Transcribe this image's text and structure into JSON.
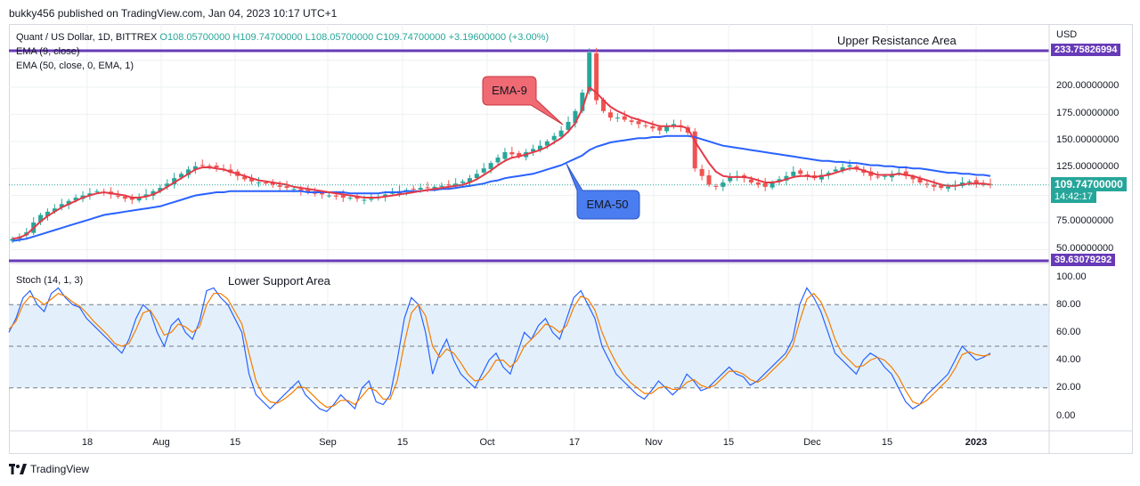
{
  "header": {
    "published": "bukky456 published on TradingView.com, Jan 04, 2023 10:17 UTC+1"
  },
  "legend": {
    "symbol": "Quant / US Dollar, 1D, BITTREX",
    "ohlc": "O108.05700000  H109.74700000  L108.05700000  C109.74700000  +3.19600000 (+3.00%)",
    "ema9": "EMA (9, close)",
    "ema50": "EMA (50, close, 0, EMA, 1)",
    "stoch": "Stoch (14, 1, 3)"
  },
  "annotations": {
    "upper": "Upper Resistance Area",
    "lower": "Lower Support Area",
    "ema9_callout": "EMA-9",
    "ema50_callout": "EMA-50"
  },
  "price_axis": {
    "currency": "USD",
    "ticks": [
      "200.00000000",
      "175.00000000",
      "150.00000000",
      "125.00000000",
      "75.00000000",
      "50.00000000"
    ],
    "resistance_label": "233.75826994",
    "support_label": "39.63079292",
    "last_price": "109.74700000",
    "countdown": "14:42:17"
  },
  "stoch_axis": {
    "ticks": [
      "100.00",
      "80.00",
      "60.00",
      "40.00",
      "20.00",
      "0.00"
    ]
  },
  "time_axis": {
    "ticks": [
      "18",
      "Aug",
      "15",
      "Sep",
      "15",
      "Oct",
      "17",
      "Nov",
      "15",
      "Dec",
      "15",
      "2023"
    ]
  },
  "footer": {
    "brand": "TradingView"
  },
  "colors": {
    "up": "#26a69a",
    "down": "#ef5350",
    "ema9": "#e53947",
    "ema50": "#2962ff",
    "level": "#673ab7",
    "stochK": "#2962ff",
    "stochD": "#f57c00",
    "band": "#e3f0fb"
  },
  "chart_data": [
    {
      "type": "candlestick",
      "title": "Quant / US Dollar, 1D, BITTREX",
      "ylim": [
        39.63,
        233.76
      ],
      "levels": {
        "resistance": 233.75826994,
        "support": 39.63079292
      },
      "last": 109.747,
      "close_path": [
        60,
        62,
        66,
        75,
        82,
        85,
        88,
        92,
        95,
        98,
        100,
        102,
        104,
        103,
        101,
        99,
        97,
        96,
        98,
        101,
        104,
        107,
        111,
        116,
        120,
        124,
        127,
        128,
        127,
        126,
        124,
        121,
        118,
        115,
        113,
        112,
        111,
        110,
        108,
        107,
        106,
        104,
        103,
        102,
        101,
        100,
        99,
        98,
        98,
        97,
        96,
        97,
        99,
        101,
        103,
        104,
        105,
        106,
        107,
        107,
        108,
        109,
        110,
        111,
        113,
        116,
        120,
        125,
        130,
        135,
        140,
        138,
        136,
        140,
        143,
        146,
        150,
        155,
        160,
        168,
        178,
        195,
        232,
        188,
        178,
        172,
        172,
        170,
        168,
        166,
        164,
        162,
        160,
        164,
        166,
        163,
        158,
        125,
        118,
        110,
        108,
        112,
        117,
        118,
        116,
        112,
        110,
        108,
        112,
        115,
        118,
        122,
        120,
        118,
        116,
        119,
        121,
        124,
        126,
        128,
        124,
        121,
        118,
        117,
        118,
        120,
        121,
        118,
        115,
        112,
        110,
        108,
        107,
        108,
        110,
        112,
        113,
        111,
        110,
        109.7
      ],
      "series": [
        {
          "name": "EMA (9, close)",
          "values": [
            60,
            61,
            64,
            70,
            76,
            81,
            85,
            89,
            92,
            95,
            98,
            100,
            102,
            103,
            102,
            101,
            100,
            98,
            98,
            99,
            101,
            104,
            108,
            112,
            116,
            120,
            124,
            126,
            126,
            125,
            124,
            122,
            120,
            118,
            116,
            114,
            113,
            112,
            111,
            110,
            108,
            107,
            106,
            105,
            104,
            103,
            102,
            101,
            100,
            99,
            98,
            98,
            98,
            99,
            100,
            101,
            102,
            103,
            104,
            105,
            106,
            107,
            108,
            109,
            110,
            112,
            115,
            119,
            123,
            128,
            132,
            135,
            136,
            138,
            140,
            142,
            145,
            149,
            153,
            159,
            167,
            180,
            200,
            195,
            188,
            182,
            178,
            175,
            172,
            170,
            168,
            166,
            164,
            164,
            164,
            164,
            162,
            150,
            140,
            130,
            122,
            118,
            117,
            117,
            117,
            116,
            114,
            112,
            112,
            113,
            115,
            117,
            118,
            118,
            117,
            118,
            119,
            121,
            123,
            125,
            125,
            123,
            121,
            119,
            119,
            119,
            120,
            119,
            118,
            116,
            114,
            112,
            110,
            109,
            109,
            110,
            111,
            111,
            111,
            110
          ]
        },
        {
          "name": "EMA (50, close, 0, EMA, 1)",
          "values": [
            58,
            59,
            60,
            62,
            64,
            66,
            68,
            70,
            72,
            74,
            76,
            78,
            80,
            82,
            83,
            84,
            85,
            86,
            87,
            88,
            89,
            90,
            92,
            94,
            96,
            98,
            100,
            101,
            102,
            103,
            103,
            104,
            104,
            104,
            104,
            104,
            104,
            104,
            104,
            104,
            104,
            104,
            103,
            103,
            103,
            103,
            103,
            103,
            102,
            102,
            102,
            102,
            102,
            103,
            103,
            103,
            104,
            104,
            104,
            105,
            105,
            106,
            106,
            107,
            108,
            109,
            110,
            111,
            113,
            114,
            116,
            117,
            118,
            119,
            120,
            122,
            124,
            126,
            128,
            131,
            134,
            137,
            142,
            145,
            147,
            149,
            150,
            151,
            152,
            153,
            153,
            154,
            154,
            155,
            155,
            155,
            155,
            154,
            152,
            150,
            148,
            146,
            145,
            144,
            143,
            142,
            141,
            140,
            139,
            138,
            137,
            136,
            135,
            134,
            133,
            132,
            132,
            131,
            131,
            130,
            130,
            129,
            128,
            128,
            127,
            127,
            126,
            126,
            125,
            125,
            124,
            123,
            122,
            121,
            121,
            120,
            120,
            119,
            119,
            118
          ]
        }
      ]
    },
    {
      "type": "line",
      "title": "Stoch (14, 1, 3)",
      "ylim": [
        0,
        100
      ],
      "bands": [
        20,
        50,
        80
      ],
      "series": [
        {
          "name": "%K",
          "values": [
            60,
            70,
            85,
            90,
            80,
            75,
            88,
            92,
            85,
            80,
            78,
            70,
            65,
            60,
            55,
            50,
            45,
            55,
            70,
            80,
            75,
            60,
            50,
            65,
            70,
            60,
            55,
            68,
            90,
            92,
            85,
            80,
            70,
            60,
            30,
            15,
            10,
            5,
            10,
            15,
            20,
            25,
            15,
            10,
            5,
            3,
            8,
            15,
            10,
            5,
            20,
            25,
            10,
            8,
            15,
            40,
            70,
            85,
            80,
            60,
            30,
            45,
            55,
            40,
            30,
            25,
            20,
            30,
            40,
            45,
            35,
            30,
            45,
            60,
            55,
            65,
            70,
            60,
            55,
            70,
            85,
            90,
            80,
            70,
            50,
            40,
            30,
            25,
            20,
            15,
            12,
            18,
            25,
            20,
            15,
            20,
            30,
            25,
            18,
            20,
            25,
            30,
            35,
            30,
            28,
            22,
            25,
            30,
            35,
            40,
            45,
            55,
            80,
            92,
            85,
            75,
            60,
            45,
            40,
            35,
            30,
            40,
            45,
            42,
            35,
            30,
            20,
            10,
            5,
            8,
            15,
            20,
            25,
            30,
            40,
            50,
            45,
            40,
            42,
            45
          ]
        },
        {
          "name": "%D",
          "values": [
            62,
            68,
            80,
            86,
            84,
            80,
            84,
            88,
            86,
            82,
            79,
            74,
            68,
            63,
            58,
            52,
            50,
            52,
            62,
            74,
            76,
            68,
            58,
            60,
            66,
            64,
            60,
            64,
            80,
            88,
            88,
            84,
            75,
            66,
            45,
            25,
            15,
            10,
            9,
            12,
            16,
            21,
            20,
            15,
            10,
            6,
            7,
            11,
            11,
            8,
            14,
            20,
            18,
            12,
            12,
            25,
            52,
            74,
            80,
            72,
            50,
            42,
            48,
            45,
            38,
            30,
            25,
            26,
            32,
            40,
            40,
            35,
            40,
            50,
            55,
            60,
            66,
            64,
            60,
            65,
            78,
            86,
            84,
            76,
            60,
            48,
            38,
            30,
            24,
            20,
            16,
            16,
            20,
            21,
            19,
            19,
            24,
            26,
            22,
            20,
            22,
            27,
            32,
            32,
            30,
            26,
            24,
            27,
            32,
            37,
            42,
            50,
            68,
            84,
            88,
            82,
            70,
            55,
            45,
            40,
            35,
            36,
            40,
            42,
            40,
            35,
            28,
            18,
            10,
            8,
            11,
            16,
            21,
            26,
            34,
            44,
            46,
            44,
            43,
            44
          ]
        }
      ]
    }
  ]
}
